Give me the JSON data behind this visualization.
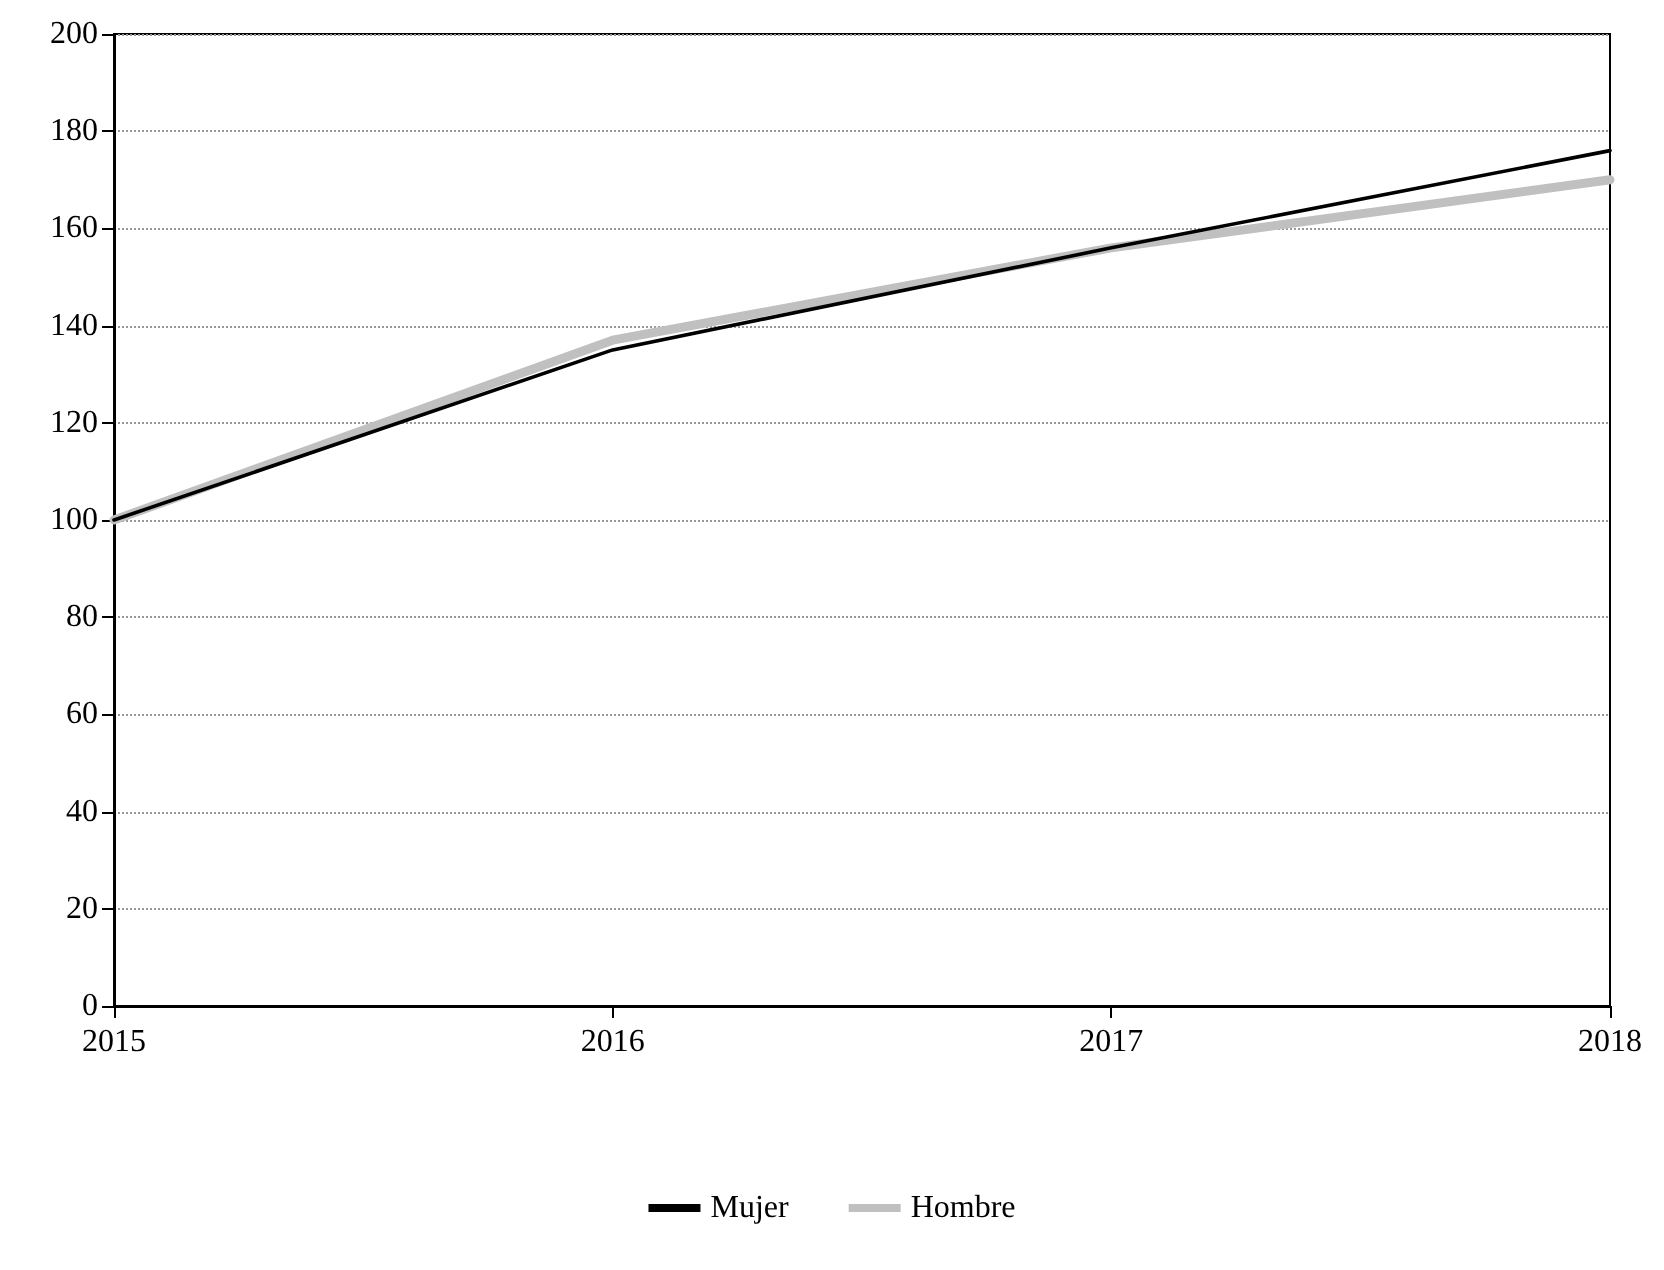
{
  "chart_data": {
    "type": "line",
    "categories": [
      "2015",
      "2016",
      "2017",
      "2018"
    ],
    "series": [
      {
        "name": "Mujer",
        "color": "#000000",
        "values": [
          100,
          135,
          156,
          176
        ]
      },
      {
        "name": "Hombre",
        "color": "#c0c0c0",
        "values": [
          100,
          137,
          156,
          170
        ]
      }
    ],
    "ylim": [
      0,
      200
    ],
    "yticks": [
      0,
      20,
      40,
      60,
      80,
      100,
      120,
      140,
      160,
      180,
      200
    ],
    "grid": "y",
    "legend": "bottom",
    "marker": "none",
    "line_style": "solid"
  }
}
